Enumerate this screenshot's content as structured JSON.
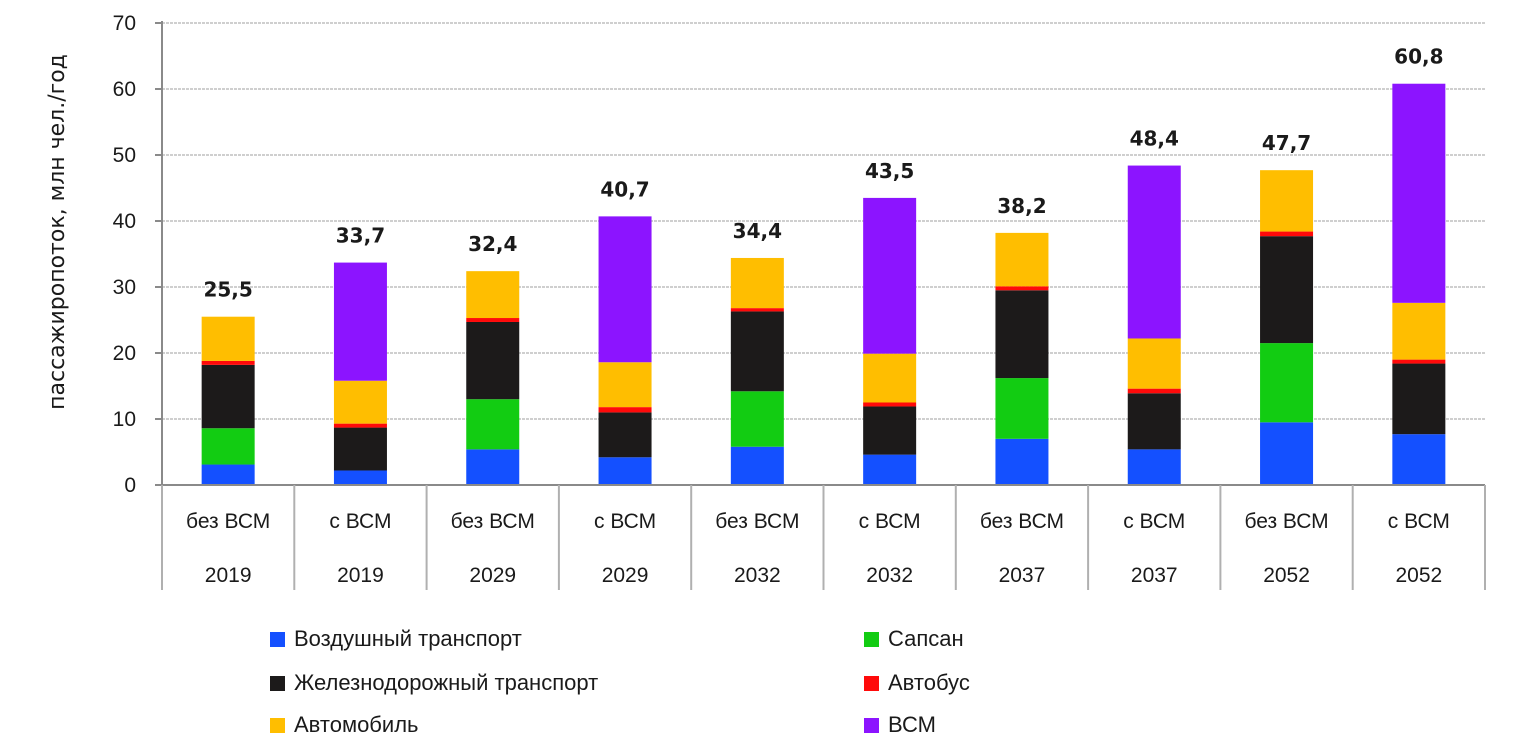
{
  "chart_data": {
    "type": "bar",
    "stacked": true,
    "title": "",
    "xlabel": "",
    "ylabel": "пассажиропоток, млн  чел./год",
    "ylim": [
      0,
      70
    ],
    "yticks": [
      0,
      10,
      20,
      30,
      40,
      50,
      60,
      70
    ],
    "grid": true,
    "legend_position": "bottom",
    "categories": [
      {
        "scenario": "без ВСМ",
        "year": "2019"
      },
      {
        "scenario": "с ВСМ",
        "year": "2019"
      },
      {
        "scenario": "без ВСМ",
        "year": "2029"
      },
      {
        "scenario": "с ВСМ",
        "year": "2029"
      },
      {
        "scenario": "без ВСМ",
        "year": "2032"
      },
      {
        "scenario": "с ВСМ",
        "year": "2032"
      },
      {
        "scenario": "без ВСМ",
        "year": "2037"
      },
      {
        "scenario": "с ВСМ",
        "year": "2037"
      },
      {
        "scenario": "без ВСМ",
        "year": "2052"
      },
      {
        "scenario": "с ВСМ",
        "year": "2052"
      }
    ],
    "series": [
      {
        "name": "Воздушный транспорт",
        "color": "#1450ff",
        "values": [
          3.1,
          2.2,
          5.4,
          4.2,
          5.8,
          4.6,
          7.0,
          5.4,
          9.5,
          7.7
        ]
      },
      {
        "name": "Сапсан",
        "color": "#12cc12",
        "values": [
          5.5,
          0,
          7.6,
          0,
          8.4,
          0,
          9.2,
          0,
          12.0,
          0
        ]
      },
      {
        "name": "Железнодорожный транспорт",
        "color": "#1c1a1a",
        "values": [
          9.6,
          6.5,
          11.7,
          6.8,
          12.1,
          7.3,
          13.3,
          8.5,
          16.2,
          10.7
        ]
      },
      {
        "name": "Автобус",
        "color": "#ff0a0a",
        "values": [
          0.6,
          0.6,
          0.6,
          0.8,
          0.5,
          0.6,
          0.6,
          0.7,
          0.7,
          0.6
        ]
      },
      {
        "name": "Автомобиль",
        "color": "#ffbe00",
        "values": [
          6.7,
          6.5,
          7.1,
          6.8,
          7.6,
          7.4,
          8.1,
          7.6,
          9.3,
          8.6
        ]
      },
      {
        "name": "ВСМ",
        "color": "#8c14ff",
        "values": [
          0,
          17.9,
          0,
          22.1,
          0,
          23.6,
          0,
          26.2,
          0,
          33.2
        ]
      }
    ],
    "totals": [
      "25,5",
      "33,7",
      "32,4",
      "40,7",
      "34,4",
      "43,5",
      "38,2",
      "48,4",
      "47,7",
      "60,8"
    ]
  }
}
